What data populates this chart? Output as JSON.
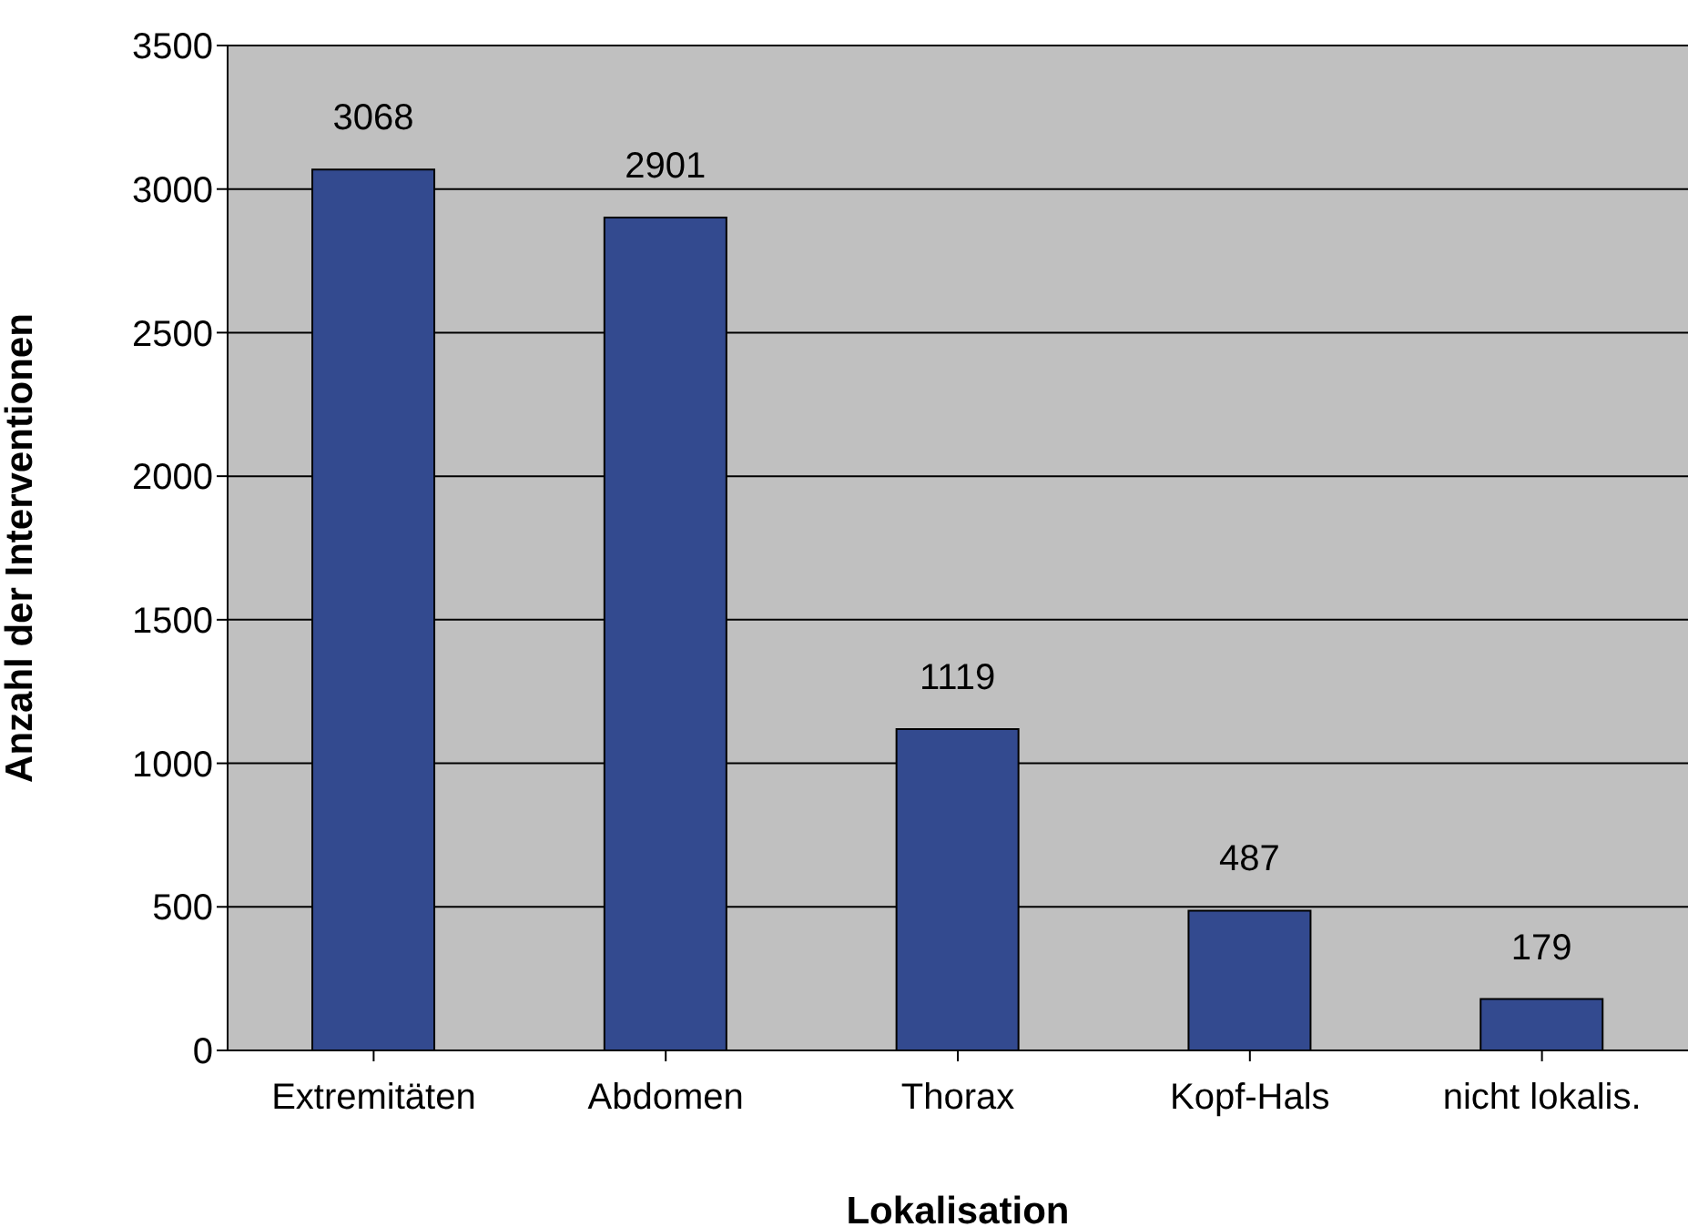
{
  "chart_data": {
    "type": "bar",
    "xlabel": "Lokalisation",
    "ylabel": "Anzahl der Interventionen",
    "categories": [
      "Extremitäten",
      "Abdomen",
      "Thorax",
      "Kopf-Hals",
      "nicht lokalis."
    ],
    "values": [
      3068,
      2901,
      1119,
      487,
      179
    ],
    "color": "#334a8f",
    "ylim": [
      0,
      3500
    ],
    "yticks": [
      0,
      500,
      1000,
      1500,
      2000,
      2500,
      3000,
      3500
    ],
    "grid": "y",
    "data_labels": true
  }
}
